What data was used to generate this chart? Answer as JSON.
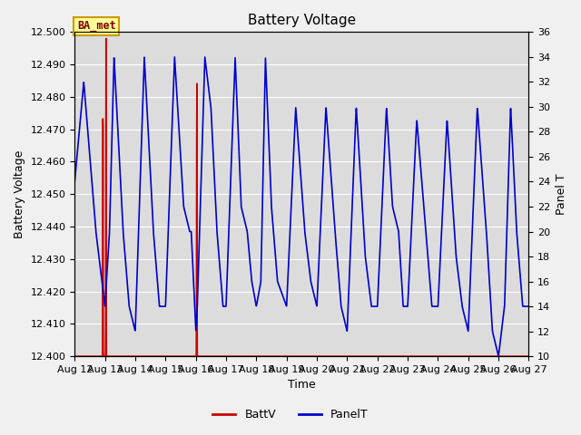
{
  "title": "Battery Voltage",
  "xlabel": "Time",
  "ylabel_left": "Battery Voltage",
  "ylabel_right": "Panel T",
  "ylim_left": [
    12.4,
    12.5
  ],
  "ylim_right": [
    10,
    36
  ],
  "fig_bg_color": "#f0f0f0",
  "plot_bg_color": "#dcdcdc",
  "annotation_text": "BA_met",
  "annotation_color": "#800000",
  "annotation_bg": "#ffff99",
  "annotation_border": "#cc9900",
  "batt_color": "#cc0000",
  "panel_color": "#0000cc",
  "legend_items": [
    "BattV",
    "PanelT"
  ],
  "x_tick_labels": [
    "Aug 12",
    "Aug 13",
    "Aug 14",
    "Aug 15",
    "Aug 16",
    "Aug 17",
    "Aug 18",
    "Aug 19",
    "Aug 20",
    "Aug 21",
    "Aug 22",
    "Aug 23",
    "Aug 24",
    "Aug 25",
    "Aug 26",
    "Aug 27"
  ],
  "x_tick_positions": [
    0,
    1,
    2,
    3,
    4,
    5,
    6,
    7,
    8,
    9,
    10,
    11,
    12,
    13,
    14,
    15
  ],
  "yticks_left": [
    12.4,
    12.41,
    12.42,
    12.43,
    12.44,
    12.45,
    12.46,
    12.47,
    12.48,
    12.49,
    12.5
  ],
  "yticks_right": [
    10,
    12,
    14,
    16,
    18,
    20,
    22,
    24,
    26,
    28,
    30,
    32,
    34,
    36
  ],
  "grid_color": "#ffffff",
  "title_fontsize": 11,
  "axis_fontsize": 9,
  "tick_fontsize": 8
}
